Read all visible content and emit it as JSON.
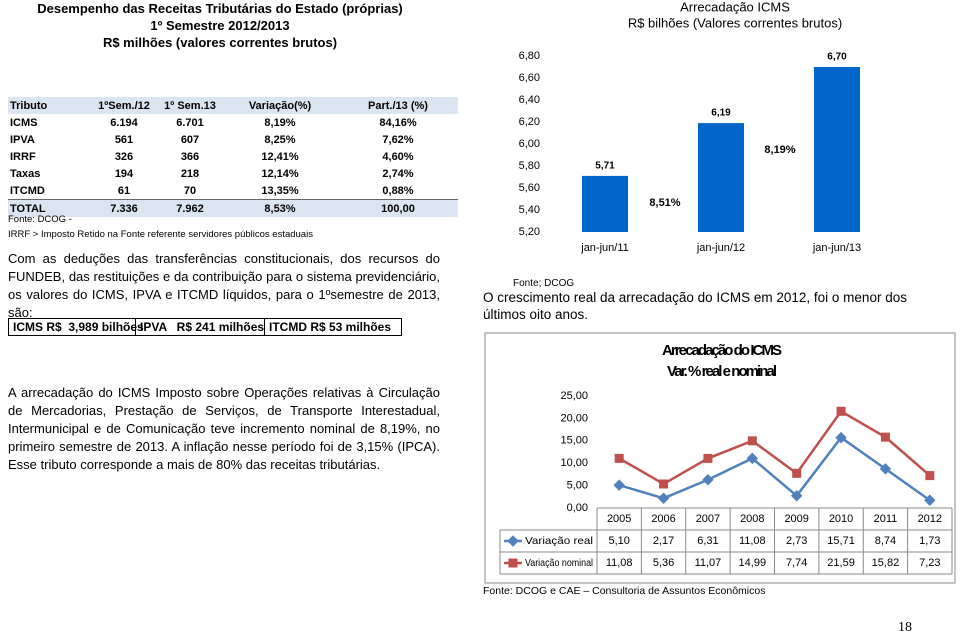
{
  "left_title": [
    "Desempenho das Receitas Tributárias do Estado (próprias)",
    "1º Semestre 2012/2013",
    "R$ milhões  (valores correntes brutos)"
  ],
  "table": {
    "header": [
      "Tributo",
      "1ºSem./12",
      "1º Sem.13",
      "Variação(%)",
      "Part./13 (%)"
    ],
    "rows": [
      [
        "ICMS",
        "6.194",
        "6.701",
        "8,19%",
        "84,16%"
      ],
      [
        "IPVA",
        "561",
        "607",
        "8,25%",
        "7,62%"
      ],
      [
        "IRRF",
        "326",
        "366",
        "12,41%",
        "4,60%"
      ],
      [
        "Taxas",
        "194",
        "218",
        "12,14%",
        "2,74%"
      ],
      [
        "ITCMD",
        "61",
        "70",
        "13,35%",
        "0,88%"
      ],
      [
        "TOTAL",
        "7.336",
        "7.962",
        "8,53%",
        "100,00"
      ]
    ]
  },
  "table_notes": [
    "Fonte: DCOG -",
    "IRRF > Imposto Retido na Fonte referente servidores públicos estaduais"
  ],
  "paragraph_1": "Com as deduções das transferências constitucionais, dos recursos do FUNDEB, das restituições e da contribuição para o sistema previdenciário, os valores do ICMS, IPVA e ITCMD líquidos, para o 1ºsemestre de 2013, são:",
  "summary": [
    "ICMS R$  3,989 bilhões",
    "IPVA   R$ 241 milhões",
    "ITCMD R$ 53 milhões"
  ],
  "paragraph_2": "A arrecadação do ICMS  Imposto sobre Operações relativas à Circulação de Mercadorias, Prestação de Serviços, de Transporte Interestadual, Intermunicipal e de Comunicação teve incremento nominal de 8,19%, no primeiro semestre de 2013. A inflação nesse período foi de 3,15% (IPCA). Esse tributo corresponde a mais de 80% das receitas tributárias.",
  "chart_data": [
    {
      "type": "bar",
      "title": "Arrecadação ICMS",
      "subtitle": "R$ bilhões (Valores correntes brutos)",
      "categories": [
        "jan-jun/11",
        "jan-jun/12",
        "jan-jun/13"
      ],
      "values": [
        5.71,
        6.19,
        6.7
      ],
      "value_labels": [
        "5,71",
        "6,19",
        "6,70"
      ],
      "color": "#0066cc",
      "annotations": [
        "8,51%",
        "8,19%"
      ],
      "ylim": [
        5.2,
        6.8
      ],
      "yticks": [
        {
          "value": 5.2,
          "label": "5,20"
        },
        {
          "value": 5.4,
          "label": "5,40"
        },
        {
          "value": 5.6,
          "label": "5,60"
        },
        {
          "value": 5.8,
          "label": "5,80"
        },
        {
          "value": 6.0,
          "label": "6,00"
        },
        {
          "value": 6.2,
          "label": "6,20"
        },
        {
          "value": 6.4,
          "label": "6,40"
        },
        {
          "value": 6.6,
          "label": "6,60"
        },
        {
          "value": 6.8,
          "label": "6,80"
        }
      ]
    },
    {
      "type": "line",
      "title": "Arrecadação do ICMS",
      "subtitle": "Var. % real e nominal",
      "categories": [
        "2005",
        "2006",
        "2007",
        "2008",
        "2009",
        "2010",
        "2011",
        "2012"
      ],
      "series": [
        {
          "name": "Variação real",
          "color": "#4f81bd",
          "marker": "diamond",
          "values": [
            5.1,
            2.17,
            6.31,
            11.08,
            2.73,
            15.71,
            8.74,
            1.73
          ],
          "value_labels": [
            "5,10",
            "2,17",
            "6,31",
            "11,08",
            "2,73",
            "15,71",
            "8,74",
            "1,73"
          ]
        },
        {
          "name": "Variação nominal",
          "color": "#c0504d",
          "marker": "square",
          "values": [
            11.08,
            5.36,
            11.07,
            14.99,
            7.74,
            21.59,
            15.82,
            7.23
          ],
          "value_labels": [
            "11,08",
            "5,36",
            "11,07",
            "14,99",
            "7,74",
            "21,59",
            "15,82",
            "7,23"
          ]
        }
      ],
      "ylim": [
        0,
        25
      ],
      "yticks": [
        {
          "value": 0,
          "label": "0,00"
        },
        {
          "value": 5,
          "label": "5,00"
        },
        {
          "value": 10,
          "label": "10,00"
        },
        {
          "value": 15,
          "label": "15,00"
        },
        {
          "value": 20,
          "label": "20,00"
        },
        {
          "value": 25,
          "label": "25,00"
        }
      ]
    }
  ],
  "chart_1_source": "Fonte; DCOG",
  "right_paragraph": "O crescimento real da arrecadação do ICMS em 2012, foi o menor dos últimos oito anos.",
  "chart_2_source": "Fonte: DCOG e CAE – Consultoria de Assuntos Econômicos",
  "page_number": "18"
}
